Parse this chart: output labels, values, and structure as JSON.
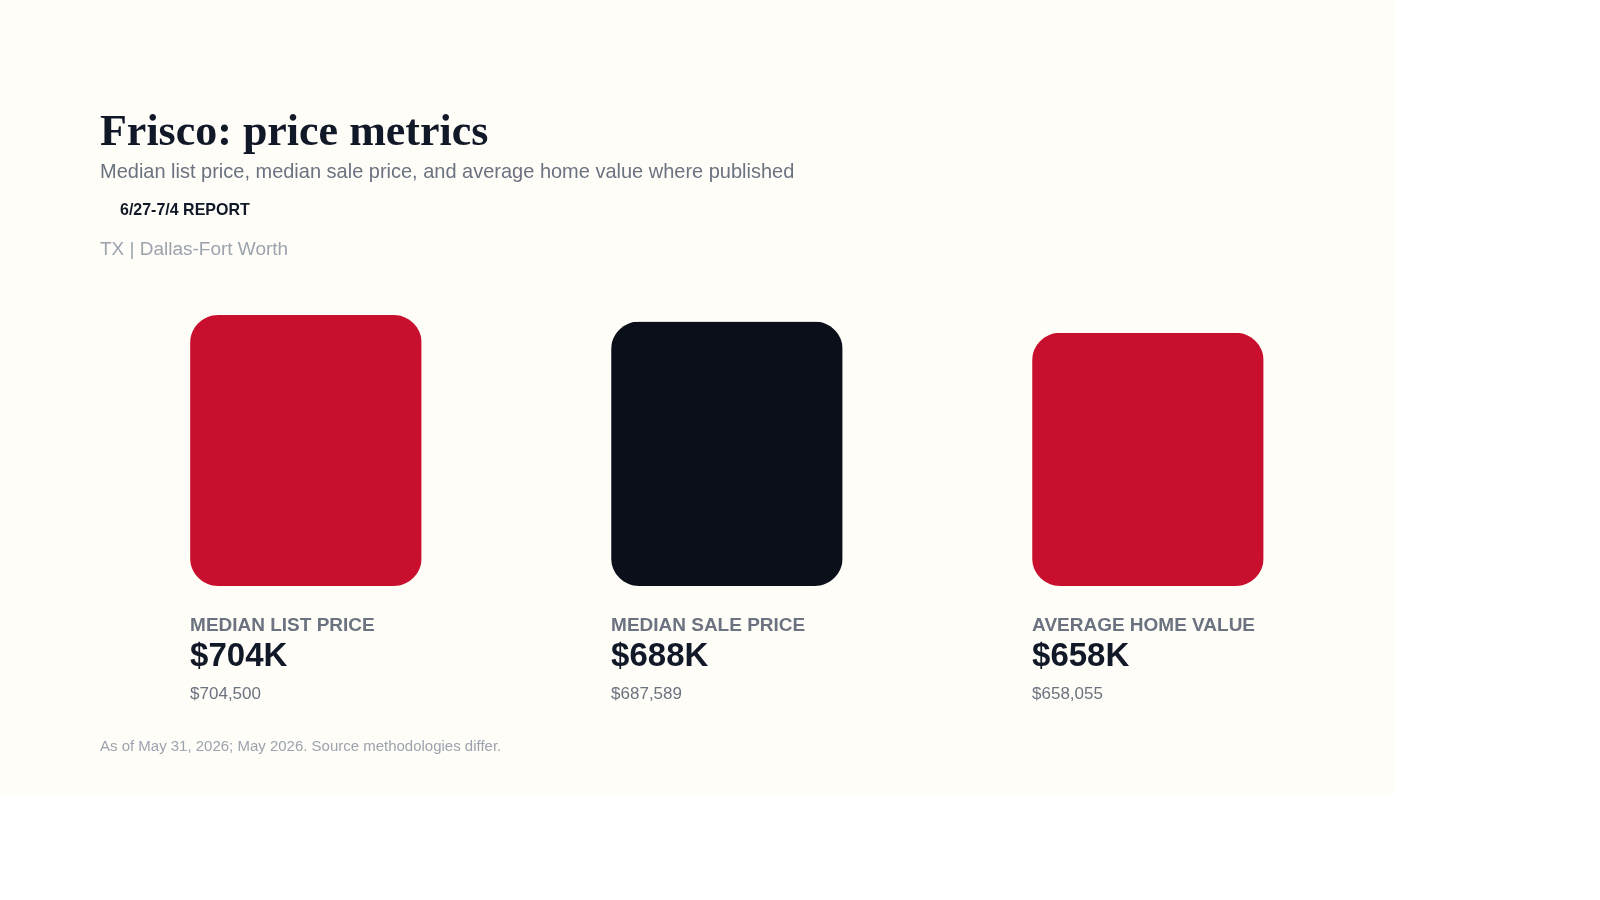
{
  "chart_data": {
    "type": "bar",
    "title": "Frisco: price metrics",
    "subtitle": "Median list price, median sale price, and average home value where published",
    "categories": [
      "MEDIAN LIST PRICE",
      "MEDIAN SALE PRICE",
      "AVERAGE HOME VALUE"
    ],
    "values": [
      704500,
      687589,
      658055
    ],
    "colors": [
      "#c8102e",
      "#0b0f1a",
      "#c8102e"
    ],
    "value_labels": [
      "$704K",
      "$688K",
      "$658K"
    ],
    "annotations": [
      "6/27-7/4 REPORT",
      "TX | Dallas-Fort Worth",
      "$704,500",
      "$687,589",
      "$658,055",
      "As of May 31, 2026; May 2026. Source methodologies differ."
    ]
  }
}
